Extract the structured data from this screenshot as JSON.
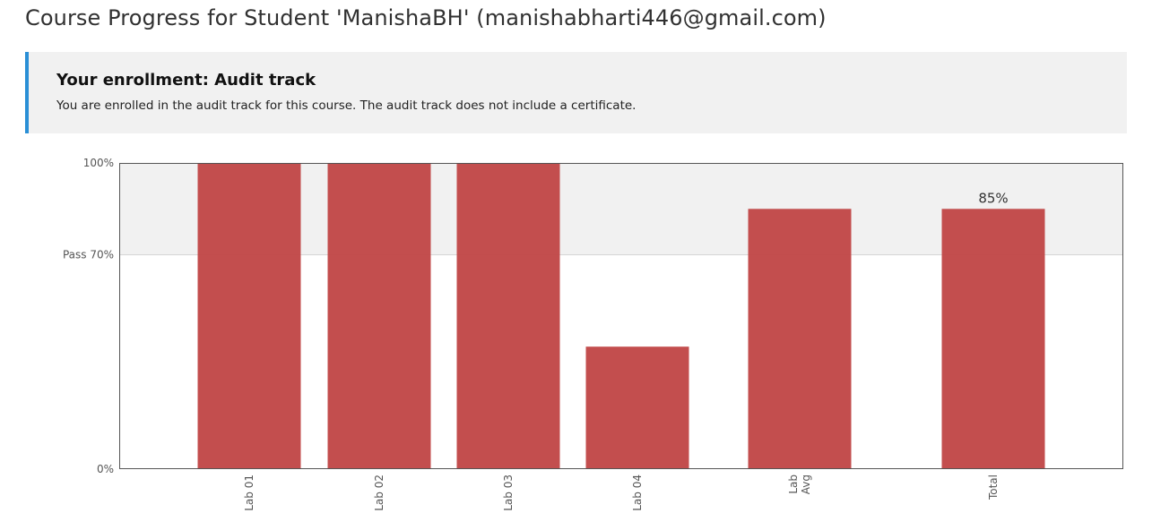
{
  "page": {
    "title": "Course Progress for Student 'ManishaBH' (manishabharti446@gmail.com)"
  },
  "enrollment": {
    "heading": "Your enrollment: Audit track",
    "message": "You are enrolled in the audit track for this course. The audit track does not include a certificate.",
    "accent_color": "#2a8fd6"
  },
  "chart_data": {
    "type": "bar",
    "categories": [
      [
        "Lab 01"
      ],
      [
        "Lab 02"
      ],
      [
        "Lab 03"
      ],
      [
        "Lab 04"
      ],
      [
        "Lab",
        "Avg"
      ],
      [
        "Total"
      ]
    ],
    "values": [
      100,
      100,
      100,
      40,
      85,
      85
    ],
    "value_labels": [
      "",
      "",
      "",
      "",
      "",
      "85%"
    ],
    "ylim": [
      0,
      100
    ],
    "y_ticks": [
      {
        "value": 100,
        "label": "100%"
      },
      {
        "value": 70,
        "label": "Pass 70%"
      },
      {
        "value": 0,
        "label": "0%"
      }
    ],
    "pass_threshold": 70,
    "bar_color": "#c04545",
    "pass_region_color": "#f1f1f1",
    "grid": false,
    "legend": "none"
  }
}
